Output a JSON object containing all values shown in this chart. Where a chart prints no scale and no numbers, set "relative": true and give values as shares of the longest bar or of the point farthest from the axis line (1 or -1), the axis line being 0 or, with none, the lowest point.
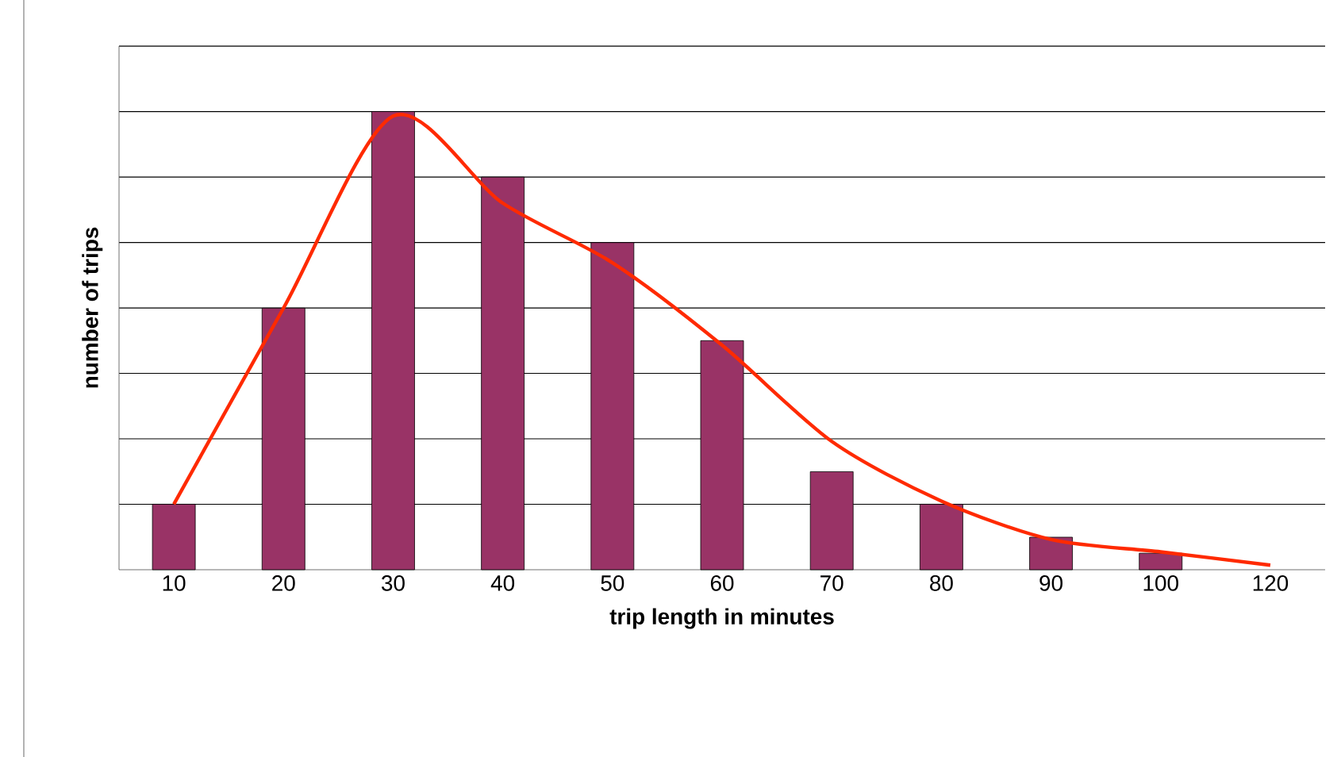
{
  "chart_data": {
    "type": "bar",
    "relative": true,
    "xlabel": "trip length in minutes",
    "ylabel": "number of trips",
    "categories": [
      "10",
      "20",
      "30",
      "40",
      "50",
      "60",
      "70",
      "80",
      "90",
      "100",
      "120"
    ],
    "grid": "y",
    "series": [
      {
        "color": "#993366",
        "values": [
          0.143,
          0.571,
          1,
          0.857,
          0.714,
          0.5,
          0.214,
          0.143,
          0.071,
          0.036,
          null
        ]
      },
      {
        "type": "line",
        "color": "#ff2a00",
        "values": [
          0.143,
          0.571,
          0.99,
          0.8,
          0.67,
          0.49,
          0.28,
          0.15,
          0.066,
          0.039,
          0.01
        ]
      }
    ]
  }
}
